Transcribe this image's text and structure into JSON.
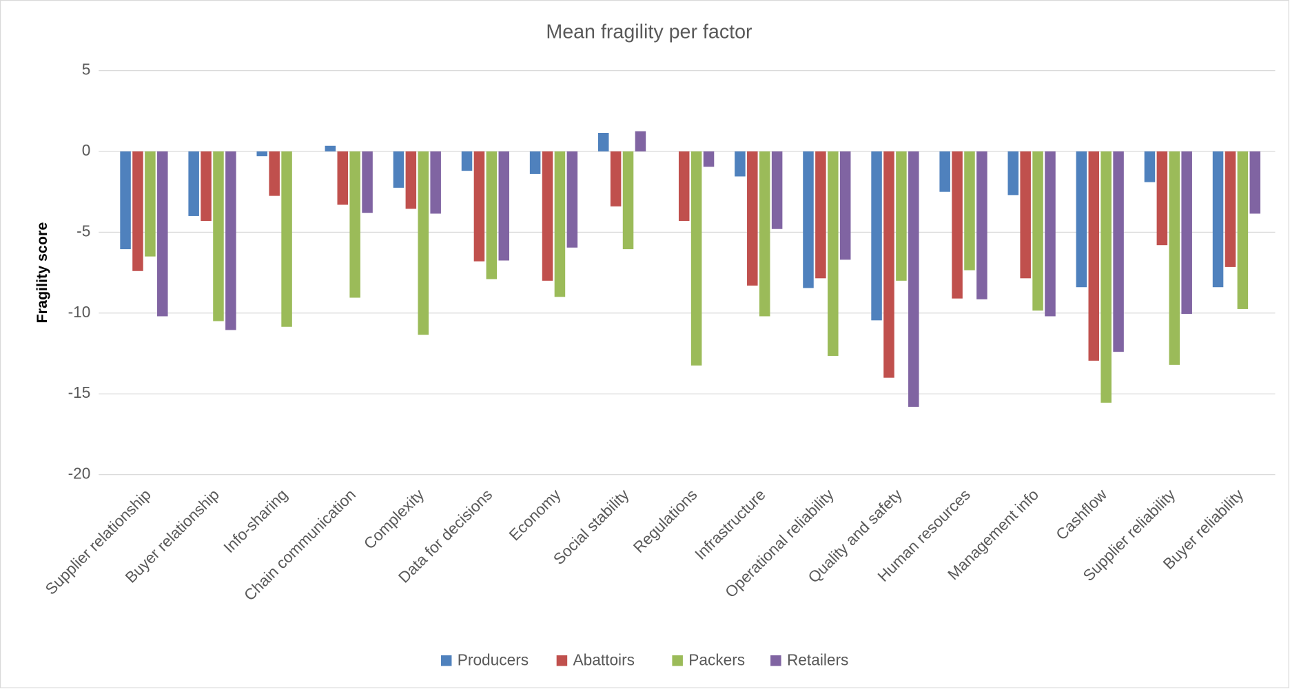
{
  "chart_data": {
    "type": "bar",
    "title": "Mean fragility per factor",
    "y_label": "Fragility score",
    "categories": [
      "Supplier relationship",
      "Buyer relationship",
      "Info-sharing",
      "Chain communication",
      "Complexity",
      "Data for decisions",
      "Economy",
      "Social stability",
      "Regulations",
      "Infrastructure",
      "Operational reliability",
      "Quality and safety",
      "Human resources",
      "Management info",
      "Cashflow",
      "Supplier reliability",
      "Buyer reliability"
    ],
    "series": [
      {
        "name": "Producers",
        "color": "#4f81bd",
        "values": [
          -6.05,
          -4.0,
          -0.3,
          0.35,
          -2.25,
          -1.2,
          -1.4,
          1.15,
          null,
          -1.55,
          -8.45,
          -10.45,
          -2.5,
          -2.7,
          -8.4,
          -1.9,
          -8.4
        ]
      },
      {
        "name": "Abattoirs",
        "color": "#c0504d",
        "values": [
          -7.4,
          -4.3,
          -2.75,
          -3.3,
          -3.55,
          -6.8,
          -8.0,
          -3.4,
          -4.3,
          -8.3,
          -7.85,
          -14.0,
          -9.1,
          -7.85,
          -12.95,
          -5.8,
          -7.15
        ]
      },
      {
        "name": "Packers",
        "color": "#9bbb59",
        "values": [
          -6.5,
          -10.5,
          -10.85,
          -9.05,
          -11.35,
          -7.9,
          -9.0,
          -6.05,
          -13.25,
          -10.2,
          -12.65,
          -8.0,
          -7.35,
          -9.85,
          -15.55,
          -13.2,
          -9.75
        ]
      },
      {
        "name": "Retailers",
        "color": "#8064a2",
        "values": [
          -10.2,
          -11.05,
          null,
          -3.8,
          -3.85,
          -6.75,
          -5.95,
          1.25,
          -0.95,
          -4.8,
          -6.7,
          -15.8,
          -9.15,
          -10.2,
          -12.4,
          -10.05,
          -3.85
        ]
      }
    ],
    "ylim": [
      -20,
      5
    ],
    "yticks": [
      -20,
      -15,
      -10,
      -5,
      0,
      5
    ],
    "grid": true,
    "legend": "bottom"
  }
}
